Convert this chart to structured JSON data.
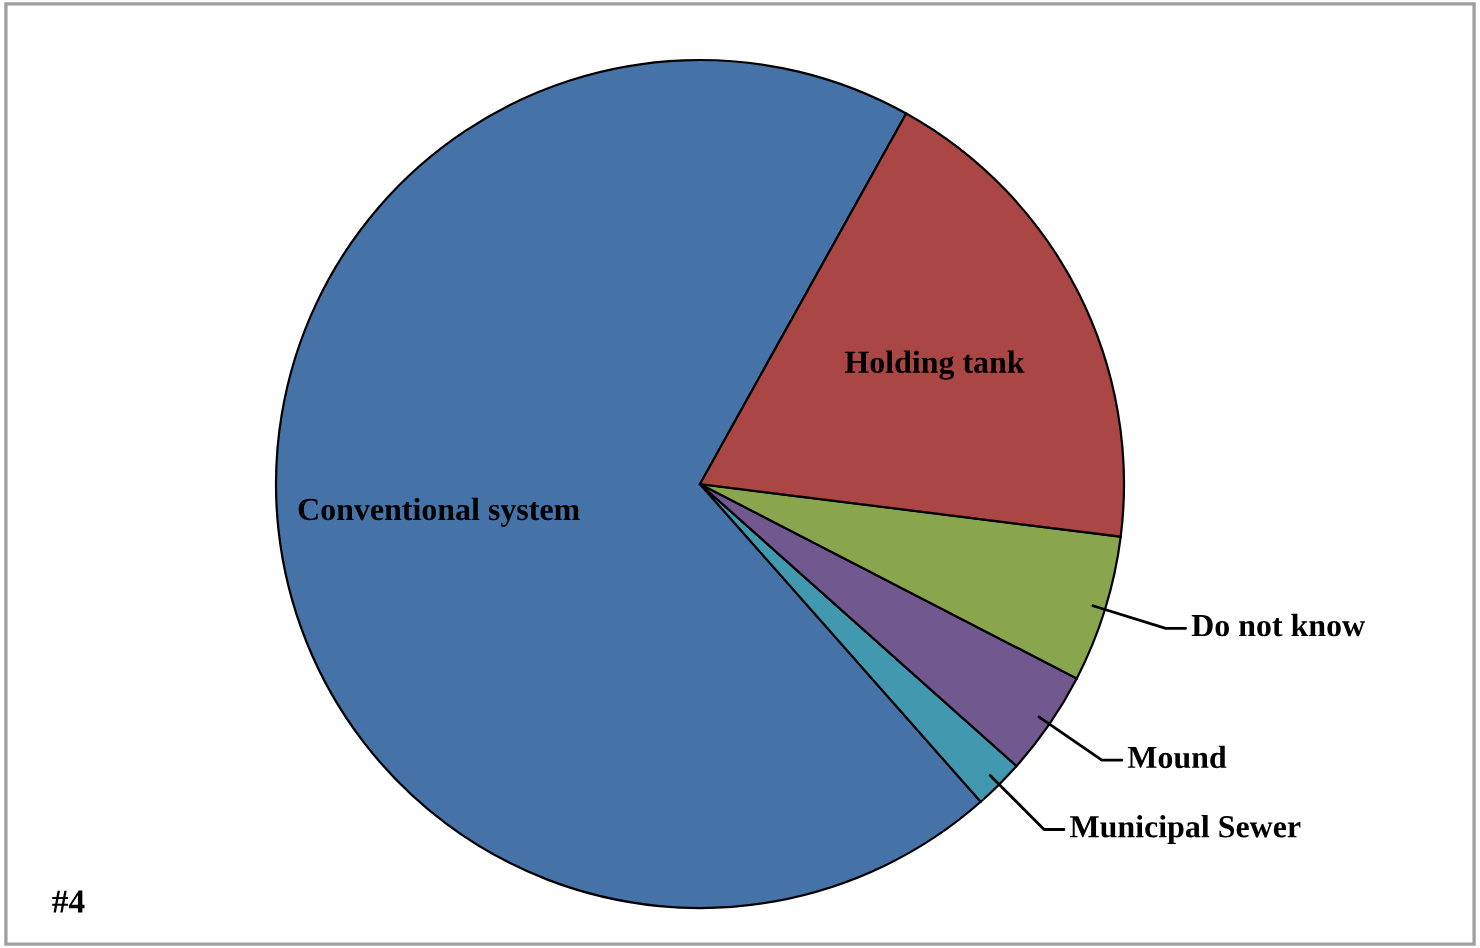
{
  "chart_data": {
    "type": "pie",
    "categories": [
      "Conventional system",
      "Municipal Sewer",
      "Mound",
      "Do not know",
      "Holding tank"
    ],
    "values": [
      69.6,
      1.9,
      4.0,
      5.6,
      18.9
    ],
    "colors": [
      "#4673a7",
      "#4198af",
      "#71588f",
      "#89a54e",
      "#aa4644"
    ],
    "annotations": [
      "#4"
    ],
    "legend": false
  }
}
